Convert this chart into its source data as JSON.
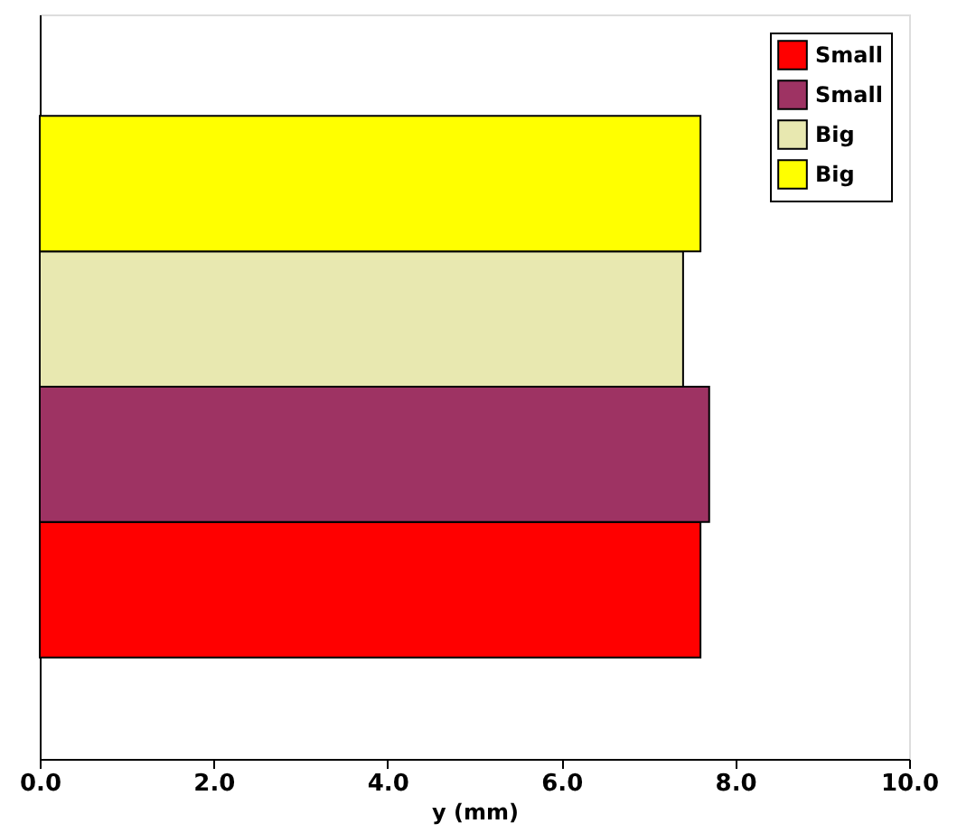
{
  "chart_data": {
    "type": "bar",
    "orientation": "horizontal",
    "categories": [
      null
    ],
    "xlabel": "y (mm)",
    "series": [
      {
        "name": "Small",
        "color": "#ff0000",
        "values": [
          7.6
        ]
      },
      {
        "name": "Small",
        "color": "#9e3363",
        "values": [
          7.7
        ]
      },
      {
        "name": "Big",
        "color": "#e8e8b0",
        "values": [
          7.4
        ]
      },
      {
        "name": "Big",
        "color": "#ffff00",
        "values": [
          7.6
        ]
      }
    ],
    "xlim": [
      0,
      10
    ],
    "xticks": [
      {
        "value": 0,
        "label": "0.0"
      },
      {
        "value": 2,
        "label": "2.0"
      },
      {
        "value": 4,
        "label": "4.0"
      },
      {
        "value": 6,
        "label": "6.0"
      },
      {
        "value": 8,
        "label": "8.0"
      },
      {
        "value": 10,
        "label": "10.0"
      }
    ],
    "grid": false,
    "legend": "top right",
    "tick_labels": "x"
  }
}
